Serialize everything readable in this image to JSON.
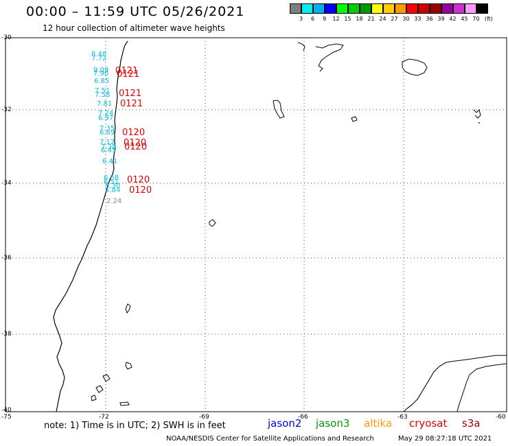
{
  "header": {
    "title": "00:00 – 11:59 UTC 05/26/2021",
    "subtitle": "12 hour collection of altimeter wave heights"
  },
  "colorbar": {
    "colors": [
      "#7f7f7f",
      "#00f0f0",
      "#00b0f0",
      "#0000ff",
      "#00ff00",
      "#00cc00",
      "#009900",
      "#ffff00",
      "#ffcc00",
      "#ff9900",
      "#ff0000",
      "#cc0000",
      "#990000",
      "#990099",
      "#cc33cc",
      "#ff99ff",
      "#000000"
    ],
    "ticks": [
      "3",
      "6",
      "9",
      "12",
      "15",
      "18",
      "21",
      "24",
      "27",
      "30",
      "33",
      "36",
      "39",
      "42",
      "45",
      "70"
    ],
    "unit": "(ft)"
  },
  "axes": {
    "lat_labels": [
      "-30",
      "-32",
      "-34",
      "-36",
      "-38",
      "-40"
    ],
    "lon_labels": [
      "-75",
      "-72",
      "-69",
      "-66",
      "-63",
      "-60"
    ]
  },
  "observations": {
    "wave_heights": [
      "8.48",
      "7.72",
      "9.09",
      "7.90",
      "6.85",
      "7.51",
      "7.58",
      "7.81",
      "7.24",
      "6.97",
      "7.35",
      "6.69",
      "7.12",
      "7.38",
      "6.45",
      "6.41",
      "6.58",
      "6.51",
      "5.30",
      "5.84",
      "2.24"
    ],
    "pass_times": [
      "0121",
      "0121",
      "0121",
      "0121",
      "0120",
      "0120",
      "0120",
      "0120",
      "0120"
    ]
  },
  "footer": {
    "note": "note: 1) Time is in UTC; 2) SWH is in feet",
    "satellites": [
      {
        "name": "jason2",
        "color": "#0000e0"
      },
      {
        "name": "jason3",
        "color": "#009900"
      },
      {
        "name": "altika",
        "color": "#ff9900"
      },
      {
        "name": "cryosat",
        "color": "#e00000"
      },
      {
        "name": "s3a",
        "color": "#990000"
      }
    ],
    "credit": "NOAA/NESDIS Center for Satellite Applications and Research",
    "timestamp": "May 29 08:27:18 UTC 2021"
  }
}
